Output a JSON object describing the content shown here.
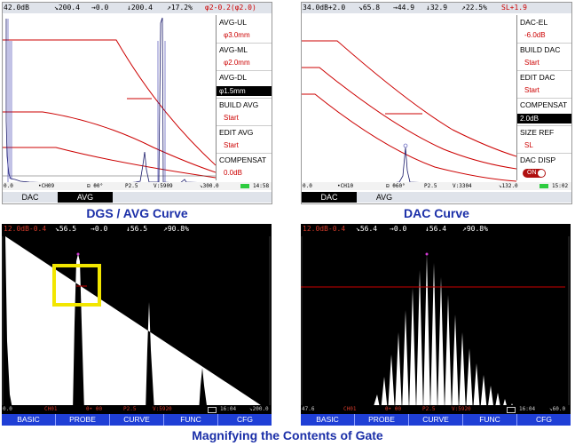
{
  "panels": {
    "dgs": {
      "readouts": [
        "42.0dB",
        "↘200.4",
        "→0.0",
        "↓200.4",
        "↗17.2%",
        "φ2-0.2(φ2.0)"
      ],
      "menu": [
        {
          "label": "AVG-UL",
          "value": "φ3.0mm"
        },
        {
          "label": "AVG-ML",
          "value": "φ2.0mm"
        },
        {
          "label": "AVG-DL",
          "value": "φ1.5mm"
        },
        {
          "label": "BUILD AVG",
          "value": "Start"
        },
        {
          "label": "EDIT AVG",
          "value": "Start"
        },
        {
          "label": "COMPENSAT",
          "value": "0.0dB"
        }
      ],
      "status": [
        "0.0",
        "•CH09",
        "⊟ θ0°",
        "P2.5",
        "V:5909",
        "↘300.0",
        "14:58"
      ],
      "tabs": [
        "DAC",
        "AVG"
      ],
      "active_tab": "AVG"
    },
    "dac": {
      "readouts": [
        "34.0dB+2.0",
        "↘65.8",
        "→44.9",
        "↓32.9",
        "↗22.5%",
        "SL+1.9"
      ],
      "menu": [
        {
          "label": "DAC-EL",
          "value": "-6.0dB"
        },
        {
          "label": "BUILD DAC",
          "value": "Start"
        },
        {
          "label": "EDIT DAC",
          "value": "Start"
        },
        {
          "label": "COMPENSAT",
          "value": "2.0dB"
        },
        {
          "label": "SIZE REF",
          "value": "SL"
        },
        {
          "label": "DAC DISP",
          "value": "ON"
        }
      ],
      "status": [
        "0.0",
        "•CH10",
        "⊟ θ60°",
        "P2.5",
        "V:3304",
        "↘132.0",
        "15:02"
      ],
      "tabs": [
        "DAC",
        "AVG"
      ],
      "active_tab": "DAC"
    },
    "gate1": {
      "readouts": [
        "12.0dB-0.4",
        "↘56.5",
        "→0.0",
        "↓56.5",
        "↗90.8%"
      ],
      "status": [
        "0.0",
        "CH01",
        "θ• θ0",
        "P2.5",
        "V:5920",
        "16:04",
        "↘200.0"
      ],
      "tabs": [
        "BASIC",
        "PROBE",
        "CURVE",
        "FUNC",
        "CFG"
      ]
    },
    "gate2": {
      "readouts": [
        "12.0dB-0.4",
        "↘56.4",
        "→0.0",
        "↓56.4",
        "↗90.8%"
      ],
      "status": [
        "47.6",
        "CH01",
        "θ• θ0",
        "P2.5",
        "V:5920",
        "16:04",
        "↘60.0"
      ],
      "tabs": [
        "BASIC",
        "PROBE",
        "CURVE",
        "FUNC",
        "CFG"
      ]
    }
  },
  "captions": {
    "dgs": "DGS / AVG Curve",
    "dac": "DAC Curve",
    "gate": "Magnifying the Contents of Gate"
  },
  "colors": {
    "caption": "#1b2fa8",
    "tab_bar": "#1f3fd6",
    "curve": "#cc0000",
    "highlight_box": "#f2e600"
  }
}
